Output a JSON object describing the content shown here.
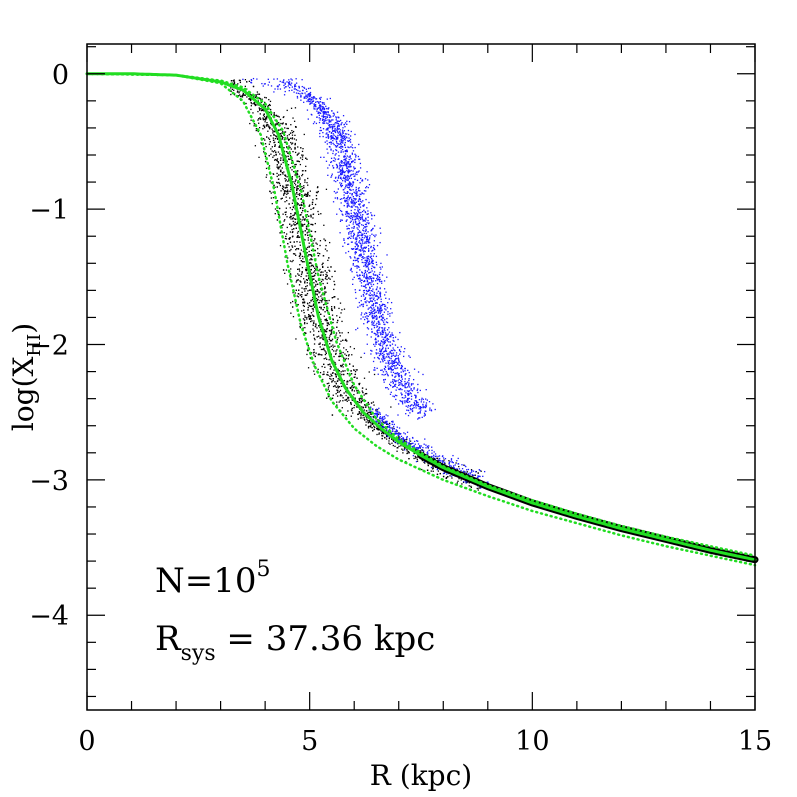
{
  "chart_data": {
    "type": "scatter",
    "title": "",
    "xlabel": "R (kpc)",
    "ylabel_main": "log(X",
    "ylabel_sub": "HI",
    "ylabel_close": ")",
    "xlim": [
      0,
      15
    ],
    "ylim": [
      -4.7,
      0.22
    ],
    "x_major_ticks": [
      0,
      5,
      10,
      15
    ],
    "x_tick_labels": [
      "0",
      "5",
      "10",
      "15"
    ],
    "x_minor_step": 1,
    "y_major_ticks": [
      0,
      -1,
      -2,
      -3,
      -4
    ],
    "y_tick_labels": [
      "0",
      "−1",
      "−2",
      "−3",
      "−4"
    ],
    "y_minor_step": 0.2,
    "annotations": {
      "n_label": "N=10",
      "n_exponent": "5",
      "r_label": "R",
      "r_sub": "sys",
      "r_value": " =  37.36  kpc"
    },
    "series": [
      {
        "name": "green-center-curve",
        "style": "solid",
        "color": "#22dd22",
        "x": [
          0,
          1,
          2,
          3,
          3.5,
          4,
          4.3,
          4.6,
          4.9,
          5.2,
          5.5,
          5.8,
          6.2,
          6.6,
          7,
          7.5,
          8,
          9,
          10,
          11,
          12,
          13,
          14,
          15
        ],
        "y": [
          0,
          0,
          -0.01,
          -0.06,
          -0.12,
          -0.26,
          -0.45,
          -0.82,
          -1.32,
          -1.8,
          -2.12,
          -2.32,
          -2.5,
          -2.62,
          -2.72,
          -2.82,
          -2.91,
          -3.05,
          -3.17,
          -3.27,
          -3.36,
          -3.44,
          -3.52,
          -3.59
        ]
      },
      {
        "name": "green-dotted-inner",
        "style": "dotted",
        "color": "#22dd22",
        "x": [
          0,
          2,
          3,
          3.5,
          3.9,
          4.2,
          4.5,
          4.8,
          5.1,
          5.5,
          6,
          6.5,
          7,
          8,
          9,
          10,
          11,
          12,
          13,
          14,
          15
        ],
        "y": [
          0,
          -0.01,
          -0.07,
          -0.2,
          -0.45,
          -0.85,
          -1.4,
          -1.85,
          -2.15,
          -2.42,
          -2.62,
          -2.75,
          -2.85,
          -3.0,
          -3.12,
          -3.23,
          -3.32,
          -3.41,
          -3.49,
          -3.56,
          -3.63
        ]
      },
      {
        "name": "green-dotted-outer",
        "style": "dotted",
        "color": "#22dd22",
        "x": [
          0,
          2,
          3,
          3.5,
          4,
          4.4,
          4.8,
          5.2,
          5.6,
          6,
          6.5,
          7,
          8,
          9,
          10,
          11,
          12,
          13,
          14,
          15
        ],
        "y": [
          0,
          -0.01,
          -0.05,
          -0.1,
          -0.22,
          -0.42,
          -0.85,
          -1.5,
          -1.98,
          -2.3,
          -2.55,
          -2.7,
          -2.9,
          -3.04,
          -3.15,
          -3.25,
          -3.34,
          -3.42,
          -3.49,
          -3.56
        ]
      }
    ],
    "scatter_clouds": [
      {
        "name": "black-points",
        "color": "#000000",
        "center_offset_kpc": 0.0,
        "spread": 0.35
      },
      {
        "name": "blue-points",
        "color": "#1a1aff",
        "center_offset_kpc": 1.3,
        "spread": 0.25
      }
    ],
    "black_band": {
      "name": "black-thick-curve",
      "color": "#000000",
      "x": [
        7.5,
        8,
        9,
        10,
        11,
        12,
        13,
        14,
        15
      ],
      "y": [
        -2.82,
        -2.91,
        -3.05,
        -3.17,
        -3.27,
        -3.36,
        -3.44,
        -3.52,
        -3.59
      ]
    }
  }
}
